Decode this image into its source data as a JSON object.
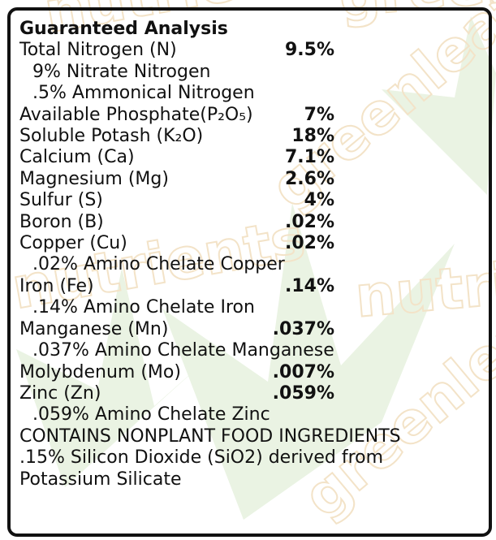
{
  "label": {
    "title": "Guaranteed Analysis",
    "rows": [
      {
        "name": "Total Nitrogen (N)",
        "value": "9.5%",
        "notes": [
          "9% Nitrate Nitrogen",
          ".5% Ammonical Nitrogen"
        ]
      },
      {
        "name": "Available Phosphate(P₂O₅)",
        "value": "7%"
      },
      {
        "name": "Soluble Potash (K₂O)",
        "value": "18%"
      },
      {
        "name": "Calcium (Ca)",
        "value": "7.1%"
      },
      {
        "name": "Magnesium (Mg)",
        "value": "2.6%"
      },
      {
        "name": "Sulfur (S)",
        "value": "4%"
      },
      {
        "name": "Boron (B)",
        "value": ".02%"
      },
      {
        "name": "Copper (Cu)",
        "value": ".02%",
        "notes": [
          ".02% Amino Chelate Copper"
        ]
      },
      {
        "name": "Iron (Fe)",
        "value": ".14%",
        "notes": [
          ".14% Amino Chelate Iron"
        ]
      },
      {
        "name": "Manganese (Mn)",
        "value": ".037%",
        "notes": [
          ".037% Amino Chelate Manganese"
        ]
      },
      {
        "name": "Molybdenum (Mo)",
        "value": ".007%"
      },
      {
        "name": "Zinc (Zn)",
        "value": ".059%",
        "notes": [
          ".059% Amino Chelate Zinc"
        ]
      }
    ],
    "statement": "CONTAINS NONPLANT FOOD INGREDIENTS",
    "detail": ".15% Silicon Dioxide (SiO2) derived from Potassium Silicate",
    "watermark": [
      "greenleaf",
      "nutrients"
    ]
  }
}
